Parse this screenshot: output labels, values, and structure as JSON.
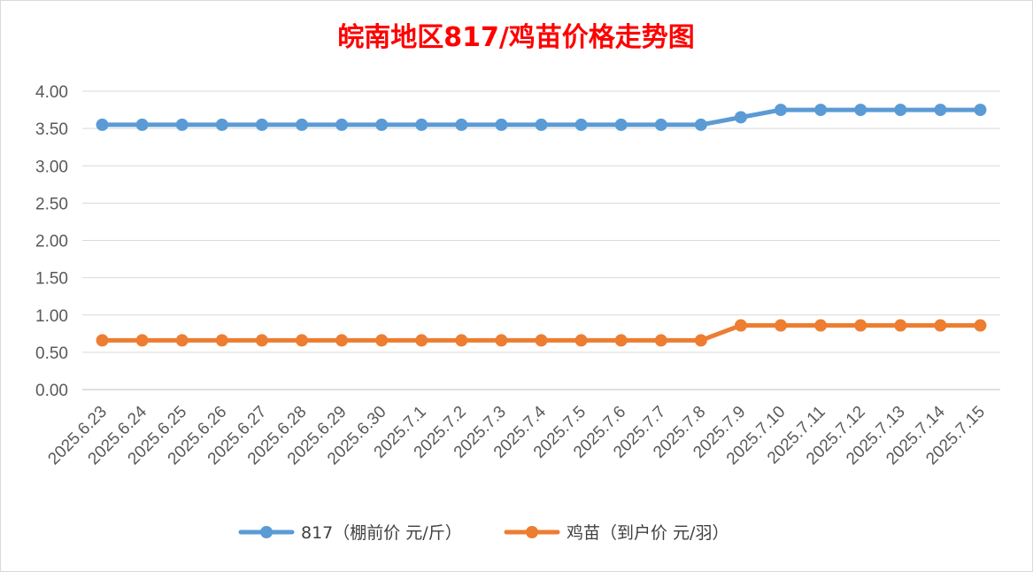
{
  "chart_data": {
    "type": "line",
    "title": "皖南地区817/鸡苗价格走势图",
    "title_color": "#ff0000",
    "xlabel": "",
    "ylabel": "",
    "ylim": [
      0,
      4
    ],
    "y_ticks": [
      "0.00",
      "0.50",
      "1.00",
      "1.50",
      "2.00",
      "2.50",
      "3.00",
      "3.50",
      "4.00"
    ],
    "grid": true,
    "legend_position": "bottom",
    "categories": [
      "2025.6.23",
      "2025.6.24",
      "2025.6.25",
      "2025.6.26",
      "2025.6.27",
      "2025.6.28",
      "2025.6.29",
      "2025.6.30",
      "2025.7.1",
      "2025.7.2",
      "2025.7.3",
      "2025.7.4",
      "2025.7.5",
      "2025.7.6",
      "2025.7.7",
      "2025.7.8",
      "2025.7.9",
      "2025.7.10",
      "2025.7.11",
      "2025.7.12",
      "2025.7.13",
      "2025.7.14",
      "2025.7.15"
    ],
    "series": [
      {
        "name": "817（棚前价 元/斤）",
        "color": "#5b9bd5",
        "values": [
          3.55,
          3.55,
          3.55,
          3.55,
          3.55,
          3.55,
          3.55,
          3.55,
          3.55,
          3.55,
          3.55,
          3.55,
          3.55,
          3.55,
          3.55,
          3.55,
          3.65,
          3.75,
          3.75,
          3.75,
          3.75,
          3.75,
          3.75
        ]
      },
      {
        "name": "鸡苗（到户价 元/羽）",
        "color": "#ed7d31",
        "values": [
          0.66,
          0.66,
          0.66,
          0.66,
          0.66,
          0.66,
          0.66,
          0.66,
          0.66,
          0.66,
          0.66,
          0.66,
          0.66,
          0.66,
          0.66,
          0.66,
          0.86,
          0.86,
          0.86,
          0.86,
          0.86,
          0.86,
          0.86
        ]
      }
    ]
  }
}
